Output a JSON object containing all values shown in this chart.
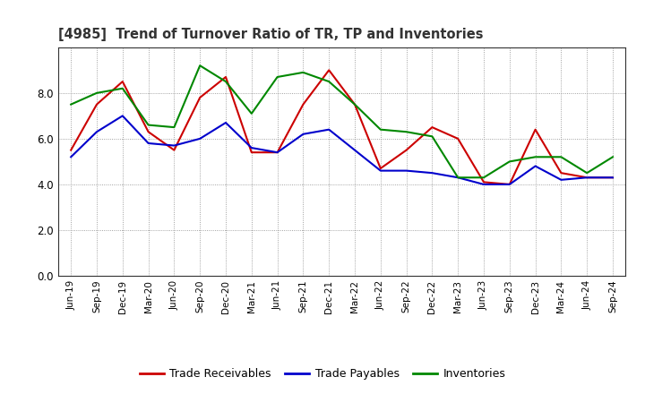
{
  "title": "[4985]  Trend of Turnover Ratio of TR, TP and Inventories",
  "x_labels": [
    "Jun-19",
    "Sep-19",
    "Dec-19",
    "Mar-20",
    "Jun-20",
    "Sep-20",
    "Dec-20",
    "Mar-21",
    "Jun-21",
    "Sep-21",
    "Dec-21",
    "Mar-22",
    "Jun-22",
    "Sep-22",
    "Dec-22",
    "Mar-23",
    "Jun-23",
    "Sep-23",
    "Dec-23",
    "Mar-24",
    "Jun-24",
    "Sep-24"
  ],
  "trade_receivables": [
    5.5,
    7.5,
    8.5,
    6.3,
    5.5,
    7.8,
    8.7,
    5.4,
    5.4,
    7.5,
    9.0,
    7.5,
    4.7,
    5.5,
    6.5,
    6.0,
    4.1,
    4.0,
    6.4,
    4.5,
    4.3,
    4.3
  ],
  "trade_payables": [
    5.2,
    6.3,
    7.0,
    5.8,
    5.7,
    6.0,
    6.7,
    5.6,
    5.4,
    6.2,
    6.4,
    5.5,
    4.6,
    4.6,
    4.5,
    4.3,
    4.0,
    4.0,
    4.8,
    4.2,
    4.3,
    4.3
  ],
  "inventories": [
    7.5,
    8.0,
    8.2,
    6.6,
    6.5,
    9.2,
    8.5,
    7.1,
    8.7,
    8.9,
    8.5,
    7.5,
    6.4,
    6.3,
    6.1,
    4.3,
    4.3,
    5.0,
    5.2,
    5.2,
    4.5,
    5.2
  ],
  "color_tr": "#cc0000",
  "color_tp": "#0000cc",
  "color_inv": "#008800",
  "ylim": [
    0.0,
    10.0
  ],
  "yticks": [
    0.0,
    2.0,
    4.0,
    6.0,
    8.0
  ],
  "background_color": "#ffffff",
  "grid_color": "#888888",
  "legend_labels": [
    "Trade Receivables",
    "Trade Payables",
    "Inventories"
  ]
}
